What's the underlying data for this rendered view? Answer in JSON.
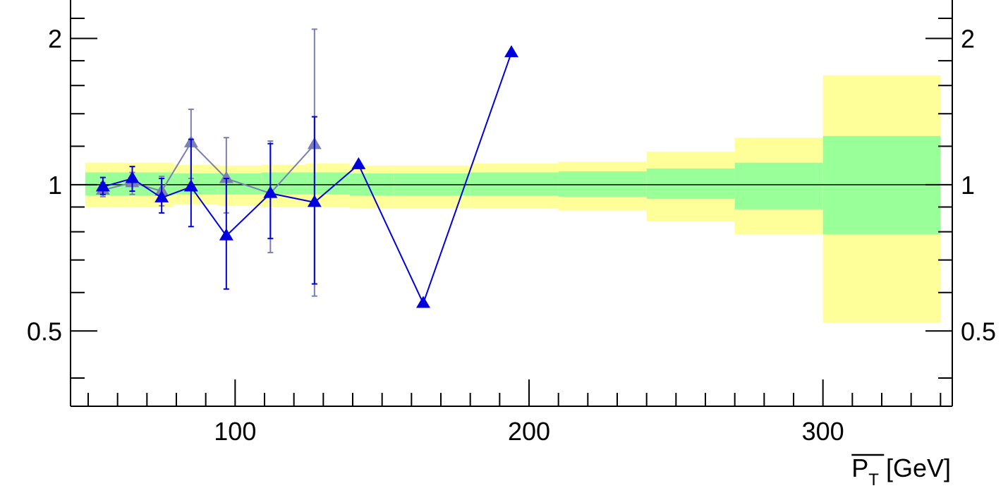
{
  "chart_data": {
    "type": "scatter",
    "title": "",
    "xlabel_main": "P",
    "xlabel_sub": "T",
    "xlabel_unit": " [GeV]",
    "xlim": [
      44,
      344
    ],
    "ylim": [
      0.35,
      2.4
    ],
    "y_log": true,
    "x_ticks": [
      100,
      200,
      300
    ],
    "x_tick_labels": [
      "100",
      "200",
      "300"
    ],
    "y_ticks": [
      0.5,
      1,
      2
    ],
    "y_tick_labels": [
      "0.5",
      "1",
      "2"
    ],
    "reference_line": 1,
    "colors": {
      "outer_band": "#ffff99",
      "inner_band": "#99ff99",
      "series_dark": "#0000dd",
      "series_light": "#7a7fb2"
    },
    "bands": [
      {
        "x0": 49,
        "x1": 79,
        "outer_lo": 0.9,
        "outer_hi": 1.11,
        "inner_lo": 0.95,
        "inner_hi": 1.06
      },
      {
        "x0": 79,
        "x1": 94,
        "outer_lo": 0.91,
        "outer_hi": 1.1,
        "inner_lo": 0.955,
        "inner_hi": 1.055
      },
      {
        "x0": 94,
        "x1": 109,
        "outer_lo": 0.905,
        "outer_hi": 1.095,
        "inner_lo": 0.955,
        "inner_hi": 1.055
      },
      {
        "x0": 109,
        "x1": 124,
        "outer_lo": 0.9,
        "outer_hi": 1.1,
        "inner_lo": 0.955,
        "inner_hi": 1.06
      },
      {
        "x0": 124,
        "x1": 139,
        "outer_lo": 0.9,
        "outer_hi": 1.105,
        "inner_lo": 0.955,
        "inner_hi": 1.06
      },
      {
        "x0": 139,
        "x1": 154,
        "outer_lo": 0.895,
        "outer_hi": 1.095,
        "inner_lo": 0.95,
        "inner_hi": 1.055
      },
      {
        "x0": 154,
        "x1": 180,
        "outer_lo": 0.895,
        "outer_hi": 1.095,
        "inner_lo": 0.95,
        "inner_hi": 1.055
      },
      {
        "x0": 180,
        "x1": 210,
        "outer_lo": 0.895,
        "outer_hi": 1.105,
        "inner_lo": 0.95,
        "inner_hi": 1.06
      },
      {
        "x0": 210,
        "x1": 240,
        "outer_lo": 0.885,
        "outer_hi": 1.115,
        "inner_lo": 0.945,
        "inner_hi": 1.065
      },
      {
        "x0": 240,
        "x1": 270,
        "outer_lo": 0.84,
        "outer_hi": 1.17,
        "inner_lo": 0.935,
        "inner_hi": 1.08
      },
      {
        "x0": 270,
        "x1": 300,
        "outer_lo": 0.79,
        "outer_hi": 1.25,
        "inner_lo": 0.89,
        "inner_hi": 1.11
      },
      {
        "x0": 300,
        "x1": 340,
        "outer_lo": 0.52,
        "outer_hi": 1.68,
        "inner_lo": 0.79,
        "inner_hi": 1.26
      }
    ],
    "series": [
      {
        "color_key": "series_dark",
        "points": [
          {
            "x": 55,
            "y": 0.99,
            "lo": 0.955,
            "hi": 1.035
          },
          {
            "x": 65,
            "y": 1.03,
            "lo": 0.97,
            "hi": 1.09
          },
          {
            "x": 75,
            "y": 0.94,
            "lo": 0.875,
            "hi": 1.03
          },
          {
            "x": 85,
            "y": 0.99,
            "lo": 0.82,
            "hi": 1.24
          },
          {
            "x": 97,
            "y": 0.785,
            "lo": 0.61,
            "hi": 1.03
          },
          {
            "x": 112,
            "y": 0.96,
            "lo": 0.775,
            "hi": 1.215
          },
          {
            "x": 127,
            "y": 0.92,
            "lo": 0.625,
            "hi": 1.38
          },
          {
            "x": 142,
            "y": 1.1,
            "lo": null,
            "hi": null
          },
          {
            "x": 164,
            "y": 0.57,
            "lo": null,
            "hi": null
          },
          {
            "x": 194,
            "y": 1.87,
            "lo": null,
            "hi": null
          }
        ]
      },
      {
        "color_key": "series_light",
        "points": [
          {
            "x": 55,
            "y": 0.975,
            "lo": 0.945,
            "hi": 1.01
          },
          {
            "x": 65,
            "y": 1.01,
            "lo": 0.955,
            "hi": 1.06
          },
          {
            "x": 75,
            "y": 0.97,
            "lo": 0.905,
            "hi": 1.04
          },
          {
            "x": 85,
            "y": 1.22,
            "lo": 1.03,
            "hi": 1.43
          },
          {
            "x": 97,
            "y": 1.03,
            "lo": 0.875,
            "hi": 1.25
          },
          {
            "x": 112,
            "y": 0.96,
            "lo": 0.725,
            "hi": 1.23
          },
          {
            "x": 127,
            "y": 1.21,
            "lo": 0.59,
            "hi": 2.09
          }
        ]
      }
    ]
  }
}
